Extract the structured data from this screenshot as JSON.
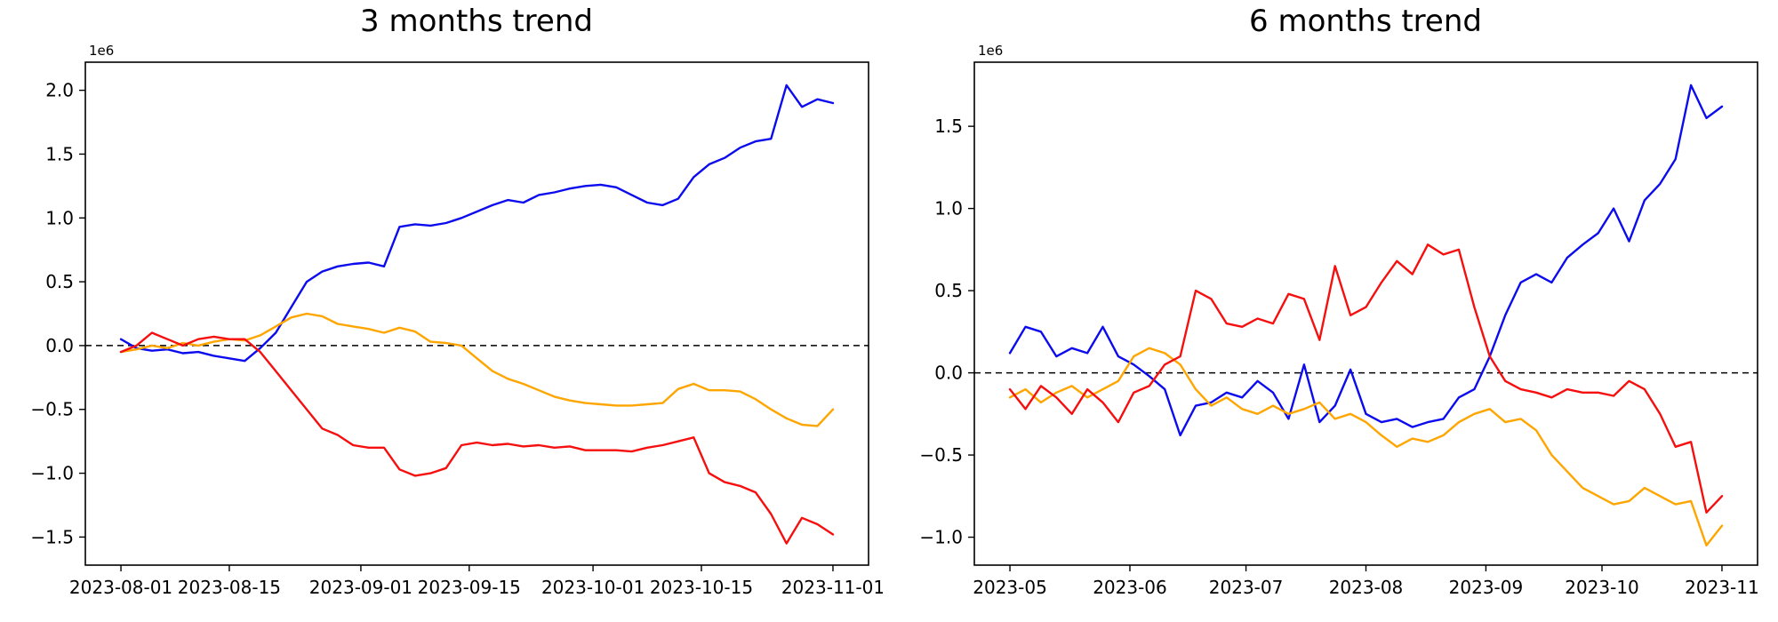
{
  "page": {
    "background": "#ffffff"
  },
  "chart_data": [
    {
      "type": "line",
      "title": "3 months trend",
      "offset_label": "1e6",
      "x_unit": "days since 2023-08-01",
      "xlim": [
        -4.6,
        96.6
      ],
      "ylim": [
        -1.72,
        2.22
      ],
      "grid": false,
      "legend": "none",
      "zero_line": {
        "style": "dashed",
        "color": "#000000",
        "y": 0
      },
      "xticks": [
        {
          "pos": 0,
          "label": "2023-08-01"
        },
        {
          "pos": 14,
          "label": "2023-08-15"
        },
        {
          "pos": 31,
          "label": "2023-09-01"
        },
        {
          "pos": 45,
          "label": "2023-09-15"
        },
        {
          "pos": 61,
          "label": "2023-10-01"
        },
        {
          "pos": 75,
          "label": "2023-10-15"
        },
        {
          "pos": 92,
          "label": "2023-11-01"
        }
      ],
      "yticks": [
        {
          "pos": -1.5,
          "label": "−1.5"
        },
        {
          "pos": -1.0,
          "label": "−1.0"
        },
        {
          "pos": -0.5,
          "label": "−0.5"
        },
        {
          "pos": 0.0,
          "label": "0.0"
        },
        {
          "pos": 0.5,
          "label": "0.5"
        },
        {
          "pos": 1.0,
          "label": "1.0"
        },
        {
          "pos": 1.5,
          "label": "1.5"
        },
        {
          "pos": 2.0,
          "label": "2.0"
        }
      ],
      "x_days": [
        0,
        2,
        4,
        6,
        8,
        10,
        12,
        14,
        16,
        18,
        20,
        22,
        24,
        26,
        28,
        30,
        32,
        34,
        36,
        38,
        40,
        42,
        44,
        46,
        48,
        50,
        52,
        54,
        56,
        58,
        60,
        62,
        64,
        66,
        68,
        70,
        72,
        74,
        76,
        78,
        80,
        82,
        84,
        86,
        88,
        90,
        92
      ],
      "series": [
        {
          "name": "blue",
          "color": "#0b0bee",
          "values": [
            0.05,
            -0.02,
            -0.04,
            -0.03,
            -0.06,
            -0.05,
            -0.08,
            -0.1,
            -0.12,
            -0.02,
            0.1,
            0.3,
            0.5,
            0.58,
            0.62,
            0.64,
            0.65,
            0.62,
            0.93,
            0.95,
            0.94,
            0.96,
            1.0,
            1.05,
            1.1,
            1.14,
            1.12,
            1.18,
            1.2,
            1.23,
            1.25,
            1.26,
            1.24,
            1.18,
            1.12,
            1.1,
            1.15,
            1.32,
            1.42,
            1.47,
            1.55,
            1.6,
            1.62,
            2.04,
            1.87,
            1.93,
            1.9
          ]
        },
        {
          "name": "orange",
          "color": "#ffa500",
          "values": [
            -0.05,
            -0.03,
            0.0,
            -0.02,
            0.02,
            0.0,
            0.03,
            0.05,
            0.04,
            0.08,
            0.15,
            0.22,
            0.25,
            0.23,
            0.17,
            0.15,
            0.13,
            0.1,
            0.14,
            0.11,
            0.03,
            0.02,
            0.0,
            -0.1,
            -0.2,
            -0.26,
            -0.3,
            -0.35,
            -0.4,
            -0.43,
            -0.45,
            -0.46,
            -0.47,
            -0.47,
            -0.46,
            -0.45,
            -0.34,
            -0.3,
            -0.35,
            -0.35,
            -0.36,
            -0.42,
            -0.5,
            -0.57,
            -0.62,
            -0.63,
            -0.5
          ]
        },
        {
          "name": "red",
          "color": "#f50f0f",
          "values": [
            -0.05,
            0.0,
            0.1,
            0.05,
            0.0,
            0.05,
            0.07,
            0.05,
            0.05,
            -0.05,
            -0.2,
            -0.35,
            -0.5,
            -0.65,
            -0.7,
            -0.78,
            -0.8,
            -0.8,
            -0.97,
            -1.02,
            -1.0,
            -0.96,
            -0.78,
            -0.76,
            -0.78,
            -0.77,
            -0.79,
            -0.78,
            -0.8,
            -0.79,
            -0.82,
            -0.82,
            -0.82,
            -0.83,
            -0.8,
            -0.78,
            -0.75,
            -0.72,
            -1.0,
            -1.07,
            -1.1,
            -1.15,
            -1.32,
            -1.55,
            -1.35,
            -1.4,
            -1.48
          ]
        }
      ]
    },
    {
      "type": "line",
      "title": "6 months trend",
      "offset_label": "1e6",
      "x_unit": "days since 2023-05-01",
      "xlim": [
        -9.2,
        193.2
      ],
      "ylim": [
        -1.17,
        1.89
      ],
      "grid": false,
      "legend": "none",
      "zero_line": {
        "style": "dashed",
        "color": "#000000",
        "y": 0
      },
      "xticks": [
        {
          "pos": 0,
          "label": "2023-05"
        },
        {
          "pos": 31,
          "label": "2023-06"
        },
        {
          "pos": 61,
          "label": "2023-07"
        },
        {
          "pos": 92,
          "label": "2023-08"
        },
        {
          "pos": 123,
          "label": "2023-09"
        },
        {
          "pos": 153,
          "label": "2023-10"
        },
        {
          "pos": 184,
          "label": "2023-11"
        }
      ],
      "yticks": [
        {
          "pos": -1.0,
          "label": "−1.0"
        },
        {
          "pos": -0.5,
          "label": "−0.5"
        },
        {
          "pos": 0.0,
          "label": "0.0"
        },
        {
          "pos": 0.5,
          "label": "0.5"
        },
        {
          "pos": 1.0,
          "label": "1.0"
        },
        {
          "pos": 1.5,
          "label": "1.5"
        }
      ],
      "x_days": [
        0,
        4,
        8,
        12,
        16,
        20,
        24,
        28,
        32,
        36,
        40,
        44,
        48,
        52,
        56,
        60,
        64,
        68,
        72,
        76,
        80,
        84,
        88,
        92,
        96,
        100,
        104,
        108,
        112,
        116,
        120,
        124,
        128,
        132,
        136,
        140,
        144,
        148,
        152,
        156,
        160,
        164,
        168,
        172,
        176,
        180,
        184
      ],
      "series": [
        {
          "name": "blue",
          "color": "#0b0bee",
          "values": [
            0.12,
            0.28,
            0.25,
            0.1,
            0.15,
            0.12,
            0.28,
            0.1,
            0.05,
            -0.02,
            -0.1,
            -0.38,
            -0.2,
            -0.18,
            -0.12,
            -0.15,
            -0.05,
            -0.12,
            -0.28,
            0.05,
            -0.3,
            -0.2,
            0.02,
            -0.25,
            -0.3,
            -0.28,
            -0.33,
            -0.3,
            -0.28,
            -0.15,
            -0.1,
            0.1,
            0.35,
            0.55,
            0.6,
            0.55,
            0.7,
            0.78,
            0.85,
            1.0,
            0.8,
            1.05,
            1.15,
            1.3,
            1.75,
            1.55,
            1.62
          ]
        },
        {
          "name": "orange",
          "color": "#ffa500",
          "values": [
            -0.15,
            -0.1,
            -0.18,
            -0.12,
            -0.08,
            -0.15,
            -0.1,
            -0.05,
            0.1,
            0.15,
            0.12,
            0.05,
            -0.1,
            -0.2,
            -0.15,
            -0.22,
            -0.25,
            -0.2,
            -0.25,
            -0.22,
            -0.18,
            -0.28,
            -0.25,
            -0.3,
            -0.38,
            -0.45,
            -0.4,
            -0.42,
            -0.38,
            -0.3,
            -0.25,
            -0.22,
            -0.3,
            -0.28,
            -0.35,
            -0.5,
            -0.6,
            -0.7,
            -0.75,
            -0.8,
            -0.78,
            -0.7,
            -0.75,
            -0.8,
            -0.78,
            -1.05,
            -0.93
          ]
        },
        {
          "name": "red",
          "color": "#f50f0f",
          "values": [
            -0.1,
            -0.22,
            -0.08,
            -0.15,
            -0.25,
            -0.1,
            -0.18,
            -0.3,
            -0.12,
            -0.08,
            0.05,
            0.1,
            0.5,
            0.45,
            0.3,
            0.28,
            0.33,
            0.3,
            0.48,
            0.45,
            0.2,
            0.65,
            0.35,
            0.4,
            0.55,
            0.68,
            0.6,
            0.78,
            0.72,
            0.75,
            0.4,
            0.1,
            -0.05,
            -0.1,
            -0.12,
            -0.15,
            -0.1,
            -0.12,
            -0.12,
            -0.14,
            -0.05,
            -0.1,
            -0.25,
            -0.45,
            -0.42,
            -0.85,
            -0.75
          ]
        }
      ]
    }
  ]
}
